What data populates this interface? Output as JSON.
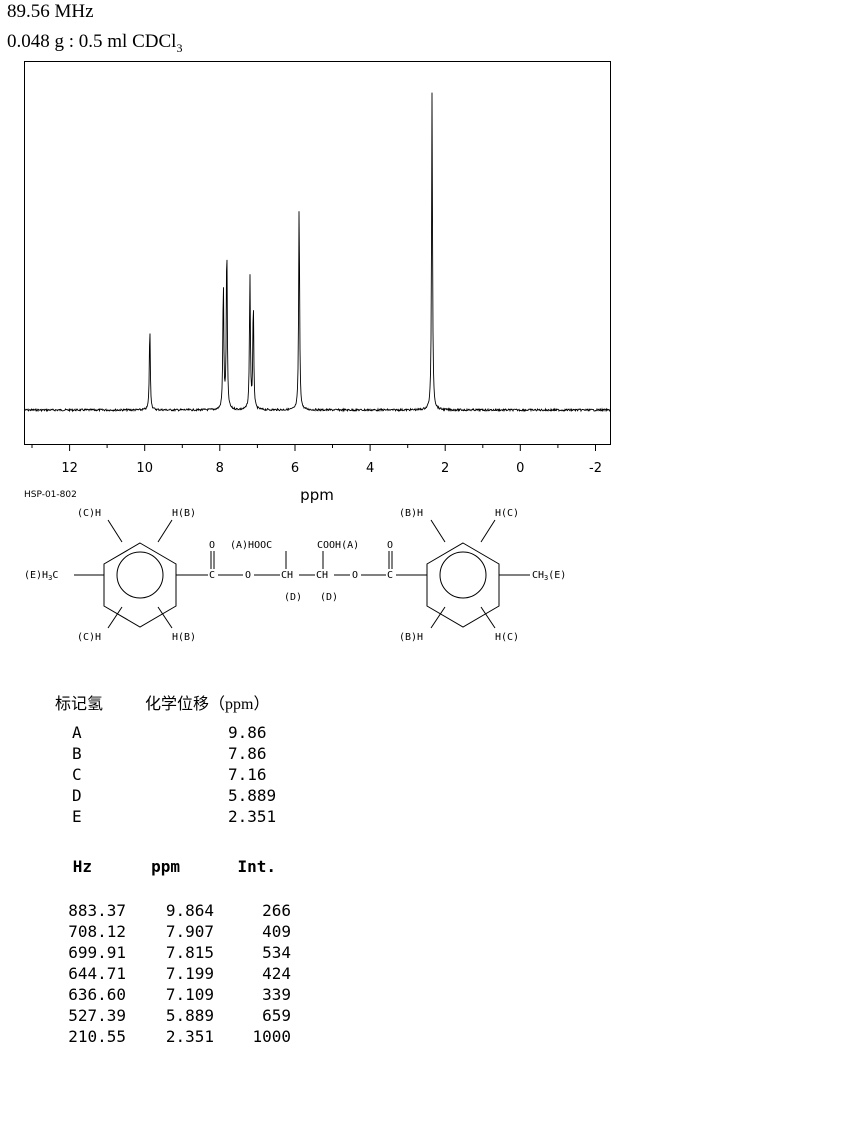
{
  "header": {
    "frequency": "89.56 MHz",
    "sample_main": "0.048 g : 0.5 ml CDCl",
    "sample_sub": "3"
  },
  "chart_data": {
    "type": "line",
    "xlabel": "ppm",
    "ylabel": "",
    "title": "",
    "xlim": [
      13.2,
      -2.4
    ],
    "x_reversed": true,
    "x_ticks": [
      "12",
      "10",
      "8",
      "6",
      "4",
      "2",
      "0",
      "-2"
    ],
    "x_tick_values": [
      12,
      10,
      8,
      6,
      4,
      2,
      0,
      -2
    ],
    "grid": false,
    "spectrum_id": "HSP-01-802",
    "peaks": [
      {
        "ppm": 9.864,
        "intensity": 266
      },
      {
        "ppm": 7.907,
        "intensity": 409
      },
      {
        "ppm": 7.815,
        "intensity": 534
      },
      {
        "ppm": 7.199,
        "intensity": 424
      },
      {
        "ppm": 7.109,
        "intensity": 339
      },
      {
        "ppm": 5.889,
        "intensity": 659
      },
      {
        "ppm": 2.351,
        "intensity": 1000
      }
    ]
  },
  "structure": {
    "labels": {
      "h_c": "H(C)",
      "c_h": "(C)H",
      "h_b": "H(B)",
      "b_h": "(B)H",
      "ch3_left": "(E)H",
      "ch3_left_sub": "3",
      "ch3_left_c": "C",
      "ch3_right": "CH",
      "ch3_right_sub": "3",
      "ch3_right_e": "(E)",
      "o": "O",
      "c": "C",
      "ch": "CH",
      "a_hooc": "(A)HOOC",
      "cooh_a": "COOH(A)",
      "d": "(D)"
    }
  },
  "assignments": {
    "col_label": "标记氢",
    "col_shift": "化学位移（ppm）",
    "rows": [
      {
        "label": "A",
        "shift": "9.86"
      },
      {
        "label": "B",
        "shift": "7.86"
      },
      {
        "label": "C",
        "shift": "7.16"
      },
      {
        "label": "D",
        "shift": "5.889"
      },
      {
        "label": "E",
        "shift": "2.351"
      }
    ]
  },
  "peak_table": {
    "headers": [
      "Hz",
      "ppm",
      "Int."
    ],
    "rows": [
      [
        "883.37",
        "9.864",
        "266"
      ],
      [
        "708.12",
        "7.907",
        "409"
      ],
      [
        "699.91",
        "7.815",
        "534"
      ],
      [
        "644.71",
        "7.199",
        "424"
      ],
      [
        "636.60",
        "7.109",
        "339"
      ],
      [
        "527.39",
        "5.889",
        "659"
      ],
      [
        "210.55",
        "2.351",
        "1000"
      ]
    ]
  }
}
